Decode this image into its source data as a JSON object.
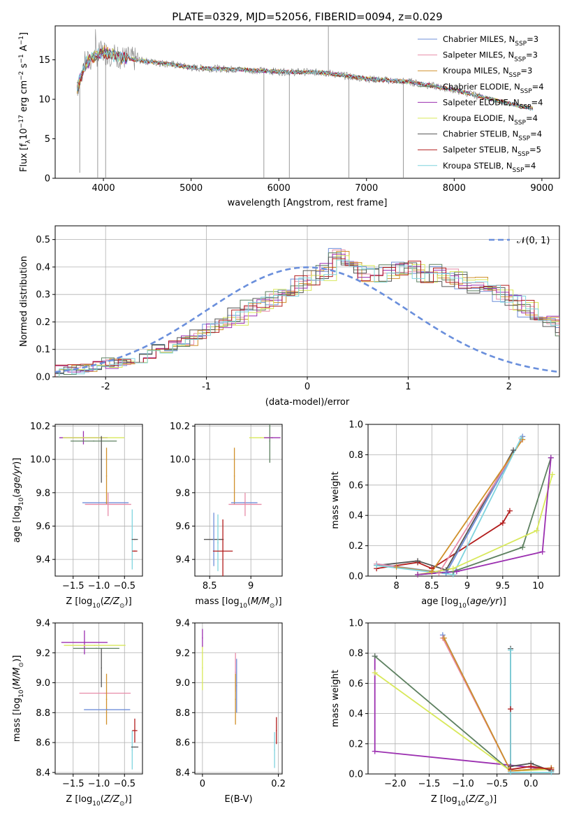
{
  "figure_title": "PLATE=0329, MJD=52056, FIBERID=0094, z=0.029",
  "colors": {
    "chabrier_miles": "#6f8fd9",
    "salpeter_miles": "#e78ca8",
    "kroupa_miles": "#d0902a",
    "chabrier_elodie": "#5d8060",
    "salpeter_elodie": "#9b2fb0",
    "kroupa_elodie": "#d8e85a",
    "chabrier_stelib": "#555555",
    "salpeter_stelib": "#b21c1c",
    "kroupa_stelib": "#7fd3de",
    "spectrum": "#808080",
    "gauss": "#6a8fdc"
  },
  "chart_data": [
    {
      "id": "spectrum",
      "type": "line",
      "xlabel": "wavelength [Angstrom, rest frame]",
      "ylabel": "Flux [f_λ 10^-17 erg cm^-2 s^-1 A^-1]",
      "xlim": [
        3450,
        9200
      ],
      "ylim": [
        0,
        19.3
      ],
      "xticks": [
        4000,
        5000,
        6000,
        7000,
        8000,
        9000
      ],
      "yticks": [
        0,
        5,
        10,
        15
      ],
      "grid": false,
      "legend_position": "top-right",
      "legend": [
        {
          "label": "Chabrier MILES, N_SSP=3",
          "color_key": "chabrier_miles"
        },
        {
          "label": "Salpeter MILES, N_SSP=3",
          "color_key": "salpeter_miles"
        },
        {
          "label": "Kroupa MILES, N_SSP=3",
          "color_key": "kroupa_miles"
        },
        {
          "label": "Chabrier ELODIE, N_SSP=4",
          "color_key": "chabrier_elodie"
        },
        {
          "label": "Salpeter ELODIE, N_SSP=4",
          "color_key": "salpeter_elodie"
        },
        {
          "label": "Kroupa ELODIE, N_SSP=4",
          "color_key": "kroupa_elodie"
        },
        {
          "label": "Chabrier STELIB, N_SSP=4",
          "color_key": "chabrier_stelib"
        },
        {
          "label": "Salpeter STELIB, N_SSP=5",
          "color_key": "salpeter_stelib"
        },
        {
          "label": "Kroupa STELIB, N_SSP=4",
          "color_key": "kroupa_stelib"
        }
      ],
      "continuum": {
        "x": [
          3700,
          3800,
          3900,
          4000,
          4200,
          4500,
          4800,
          5000,
          5500,
          6000,
          6500,
          7000,
          7500,
          8000,
          8500,
          8900
        ],
        "y": [
          11.5,
          14.5,
          15.5,
          16.0,
          15.3,
          14.8,
          14.4,
          14.0,
          13.8,
          13.5,
          13.4,
          12.6,
          12.2,
          11.2,
          9.8,
          8.8
        ]
      },
      "spikes": [
        {
          "x": 3730,
          "y": 0.7
        },
        {
          "x": 4025,
          "y": 0
        },
        {
          "x": 3935,
          "y": 0
        },
        {
          "x": 5830,
          "y": 0
        },
        {
          "x": 6120,
          "y": 0
        },
        {
          "x": 6800,
          "y": 0
        },
        {
          "x": 7420,
          "y": 0
        },
        {
          "x": 6565,
          "y": 19.3
        }
      ]
    },
    {
      "id": "residuals",
      "type": "histogram",
      "xlabel": "(data-model)/error",
      "ylabel": "Normed distribution",
      "xlim": [
        -2.5,
        2.5
      ],
      "ylim": [
        0,
        0.55
      ],
      "xticks": [
        -2,
        -1,
        0,
        1,
        2
      ],
      "yticks": [
        0.0,
        0.1,
        0.2,
        0.3,
        0.4,
        0.5
      ],
      "grid": true,
      "legend": [
        {
          "label": "𝒩(0, 1)",
          "style": "dashed"
        }
      ],
      "bin_width": 0.125,
      "base_values": [
        0.025,
        0.025,
        0.03,
        0.04,
        0.05,
        0.06,
        0.07,
        0.085,
        0.1,
        0.11,
        0.13,
        0.155,
        0.18,
        0.2,
        0.22,
        0.245,
        0.27,
        0.29,
        0.31,
        0.335,
        0.36,
        0.38,
        0.45,
        0.4,
        0.38,
        0.375,
        0.38,
        0.4,
        0.39,
        0.37,
        0.38,
        0.36,
        0.355,
        0.33,
        0.31,
        0.3,
        0.27,
        0.25,
        0.22,
        0.2,
        0.17,
        0.15,
        0.13,
        0.11,
        0.1,
        0.085,
        0.07,
        0.06,
        0.05,
        0.04,
        0.03,
        0.025,
        0.02,
        0.02
      ]
    },
    {
      "id": "age_vs_Z",
      "type": "errorbar",
      "xlabel": "Z [log10(Z/Z⊙)]",
      "ylabel": "age  [log10(age/yr)]",
      "xlim": [
        -1.85,
        -0.15
      ],
      "ylim": [
        9.3,
        10.21
      ],
      "xticks": [
        -1.5,
        -1.0,
        -0.5
      ],
      "xticklabels": [
        "−1.5",
        "−1.0",
        "−0.5"
      ],
      "yticks": [
        9.4,
        9.6,
        9.8,
        10.0,
        10.2
      ],
      "grid": true,
      "points": [
        {
          "c": "salpeter_elodie",
          "x": -1.3,
          "y": 10.13,
          "xerr": 0.47,
          "yerr": 0.04
        },
        {
          "c": "kroupa_elodie",
          "x": -1.1,
          "y": 10.13,
          "xerr": 0.6,
          "yerr": 0.0
        },
        {
          "c": "chabrier_elodie",
          "x": -1.1,
          "y": 10.11,
          "xerr": 0.45,
          "yerr": 0.0
        },
        {
          "c": "chabrier_stelib",
          "x": -0.95,
          "y": 10.0,
          "xerr": 0.0,
          "yerr": 0.14
        },
        {
          "c": "chabrier_miles",
          "x": -0.87,
          "y": 9.74,
          "xerr": 0.45,
          "yerr": 0.0
        },
        {
          "c": "kroupa_miles",
          "x": -0.85,
          "y": 9.9,
          "xerr": 0.0,
          "yerr": 0.17
        },
        {
          "c": "salpeter_miles",
          "x": -0.82,
          "y": 9.73,
          "xerr": 0.45,
          "yerr": 0.07
        },
        {
          "c": "kroupa_stelib",
          "x": -0.35,
          "y": 9.52,
          "xerr": 0.0,
          "yerr": 0.18
        },
        {
          "c": "chabrier_stelib",
          "x": -0.3,
          "y": 9.52,
          "xerr": 0.06,
          "yerr": 0.0
        },
        {
          "c": "salpeter_stelib",
          "x": -0.3,
          "y": 9.45,
          "xerr": 0.05,
          "yerr": 0.0
        }
      ]
    },
    {
      "id": "age_vs_mass",
      "type": "errorbar",
      "xlabel": "mass [log10(M/M⊙)]",
      "ylabel": "",
      "xlim": [
        8.32,
        9.38
      ],
      "ylim": [
        9.3,
        10.21
      ],
      "xticks": [
        8.5,
        9.0
      ],
      "yticks": [
        9.4,
        9.6,
        9.8,
        10.0,
        10.2
      ],
      "grid": true,
      "points": [
        {
          "c": "chabrier_stelib",
          "x": 8.55,
          "y": 9.52,
          "xerr": 0.12,
          "yerr": 0.0
        },
        {
          "c": "chabrier_miles",
          "x": 8.55,
          "y": 9.52,
          "xerr": 0.0,
          "yerr": 0.16
        },
        {
          "c": "kroupa_stelib",
          "x": 8.6,
          "y": 9.5,
          "xerr": 0.0,
          "yerr": 0.17
        },
        {
          "c": "salpeter_stelib",
          "x": 8.66,
          "y": 9.45,
          "xerr": 0.12,
          "yerr": 0.19
        },
        {
          "c": "kroupa_miles",
          "x": 8.8,
          "y": 9.9,
          "xerr": 0.0,
          "yerr": 0.17
        },
        {
          "c": "chabrier_miles",
          "x": 8.92,
          "y": 9.74,
          "xerr": 0.16,
          "yerr": 0.0
        },
        {
          "c": "salpeter_miles",
          "x": 8.93,
          "y": 9.73,
          "xerr": 0.2,
          "yerr": 0.07
        },
        {
          "c": "kroupa_elodie",
          "x": 9.12,
          "y": 10.13,
          "xerr": 0.14,
          "yerr": 0.0
        },
        {
          "c": "chabrier_elodie",
          "x": 9.23,
          "y": 10.11,
          "xerr": 0.0,
          "yerr": 0.13
        },
        {
          "c": "salpeter_elodie",
          "x": 9.26,
          "y": 10.13,
          "xerr": 0.1,
          "yerr": 0.0
        }
      ]
    },
    {
      "id": "weight_vs_age",
      "type": "line",
      "xlabel": "age  [log10(age/yr)]",
      "ylabel": "mass weight",
      "xlim": [
        7.6,
        10.3
      ],
      "ylim": [
        0,
        1.0
      ],
      "xticks": [
        8.0,
        8.5,
        9.0,
        9.5,
        10.0
      ],
      "yticks": [
        0.0,
        0.2,
        0.4,
        0.6,
        0.8,
        1.0
      ],
      "grid": true,
      "series": [
        {
          "c": "salpeter_stelib",
          "x": [
            7.72,
            8.3,
            8.5,
            9.5,
            9.6
          ],
          "y": [
            0.05,
            0.09,
            0.05,
            0.35,
            0.43
          ]
        },
        {
          "c": "chabrier_stelib",
          "x": [
            7.72,
            8.3,
            8.7,
            9.65
          ],
          "y": [
            0.07,
            0.1,
            0.04,
            0.83
          ]
        },
        {
          "c": "chabrier_miles",
          "x": [
            7.72,
            8.7,
            9.78
          ],
          "y": [
            0.08,
            0.02,
            0.92
          ]
        },
        {
          "c": "salpeter_miles",
          "x": [
            7.72,
            8.6,
            9.77
          ],
          "y": [
            0.08,
            0.02,
            0.9
          ]
        },
        {
          "c": "kroupa_miles",
          "x": [
            8.0,
            8.5,
            9.78
          ],
          "y": [
            0.06,
            0.03,
            0.9
          ]
        },
        {
          "c": "kroupa_stelib",
          "x": [
            7.72,
            8.8,
            9.76
          ],
          "y": [
            0.07,
            0.01,
            0.91
          ]
        },
        {
          "c": "chabrier_elodie",
          "x": [
            8.3,
            8.8,
            9.78,
            10.18
          ],
          "y": [
            0.01,
            0.03,
            0.19,
            0.78
          ]
        },
        {
          "c": "kroupa_elodie",
          "x": [
            8.3,
            8.8,
            9.98,
            10.2
          ],
          "y": [
            0.01,
            0.05,
            0.3,
            0.67
          ]
        },
        {
          "c": "salpeter_elodie",
          "x": [
            8.3,
            8.85,
            10.06,
            10.18
          ],
          "y": [
            0.01,
            0.03,
            0.16,
            0.78
          ]
        }
      ]
    },
    {
      "id": "mass_vs_Z",
      "type": "errorbar",
      "xlabel": "Z [log10(Z/Z⊙)]",
      "ylabel": "mass [log10(M/M⊙)]",
      "xlim": [
        -1.85,
        -0.15
      ],
      "ylim": [
        8.39,
        9.4
      ],
      "xticks": [
        -1.5,
        -1.0,
        -0.5
      ],
      "xticklabels": [
        "−1.5",
        "−1.0",
        "−0.5"
      ],
      "yticks": [
        8.4,
        8.6,
        8.8,
        9.0,
        9.2,
        9.4
      ],
      "grid": true,
      "points": [
        {
          "c": "salpeter_elodie",
          "x": -1.28,
          "y": 9.27,
          "xerr": 0.45,
          "yerr": 0.08
        },
        {
          "c": "kroupa_elodie",
          "x": -1.08,
          "y": 9.25,
          "xerr": 0.6,
          "yerr": 0.0
        },
        {
          "c": "chabrier_elodie",
          "x": -1.05,
          "y": 9.23,
          "xerr": 0.45,
          "yerr": 0.0
        },
        {
          "c": "chabrier_stelib",
          "x": -0.95,
          "y": 9.1,
          "xerr": 0.0,
          "yerr": 0.13
        },
        {
          "c": "salpeter_miles",
          "x": -0.88,
          "y": 8.93,
          "xerr": 0.5,
          "yerr": 0.0
        },
        {
          "c": "kroupa_miles",
          "x": -0.85,
          "y": 8.89,
          "xerr": 0.0,
          "yerr": 0.17
        },
        {
          "c": "chabrier_miles",
          "x": -0.84,
          "y": 8.82,
          "xerr": 0.45,
          "yerr": 0.0
        },
        {
          "c": "kroupa_stelib",
          "x": -0.35,
          "y": 8.55,
          "xerr": 0.0,
          "yerr": 0.13
        },
        {
          "c": "salpeter_stelib",
          "x": -0.3,
          "y": 8.68,
          "xerr": 0.05,
          "yerr": 0.08
        },
        {
          "c": "chabrier_stelib",
          "x": -0.3,
          "y": 8.57,
          "xerr": 0.07,
          "yerr": 0.0
        }
      ]
    },
    {
      "id": "mass_vs_ebv",
      "type": "errorbar",
      "xlabel": "E(B-V)",
      "ylabel": "",
      "xlim": [
        -0.02,
        0.21
      ],
      "ylim": [
        8.39,
        9.4
      ],
      "xticks": [
        0.0,
        0.2
      ],
      "yticks": [
        8.4,
        8.6,
        8.8,
        9.0,
        9.2,
        9.4
      ],
      "grid": true,
      "points": [
        {
          "c": "kroupa_elodie",
          "x": 0.0,
          "y": 9.1,
          "xerr": 0.0,
          "yerr": 0.15
        },
        {
          "c": "salpeter_elodie",
          "x": 0.0,
          "y": 9.3,
          "xerr": 0.0,
          "yerr": 0.06
        },
        {
          "c": "salpeter_miles",
          "x": 0.087,
          "y": 9.07,
          "xerr": 0.0,
          "yerr": 0.13
        },
        {
          "c": "kroupa_miles",
          "x": 0.087,
          "y": 8.89,
          "xerr": 0.0,
          "yerr": 0.17
        },
        {
          "c": "chabrier_miles",
          "x": 0.09,
          "y": 8.98,
          "xerr": 0.0,
          "yerr": 0.18
        },
        {
          "c": "salpeter_stelib",
          "x": 0.195,
          "y": 8.68,
          "xerr": 0.0,
          "yerr": 0.09
        },
        {
          "c": "kroupa_stelib",
          "x": 0.19,
          "y": 8.55,
          "xerr": 0.0,
          "yerr": 0.12
        }
      ]
    },
    {
      "id": "weight_vs_Z",
      "type": "line",
      "xlabel": "Z [log10(Z/Z⊙)]",
      "ylabel": "mass weight",
      "xlim": [
        -2.4,
        0.42
      ],
      "ylim": [
        0,
        1.0
      ],
      "xticks": [
        -2.0,
        -1.5,
        -1.0,
        -0.5,
        0.0
      ],
      "xticklabels": [
        "−2.0",
        "−1.5",
        "−1.0",
        "−0.5",
        "0.0"
      ],
      "yticks": [
        0.0,
        0.2,
        0.4,
        0.6,
        0.8,
        1.0
      ],
      "grid": true,
      "series": [
        {
          "c": "salpeter_elodie",
          "x": [
            -2.3,
            -2.3,
            0.3
          ],
          "y": [
            0.78,
            0.15,
            0.03
          ]
        },
        {
          "c": "chabrier_elodie",
          "x": [
            -2.3,
            -0.3,
            0.3
          ],
          "y": [
            0.78,
            0.02,
            0.03
          ]
        },
        {
          "c": "kroupa_elodie",
          "x": [
            -2.3,
            -0.3,
            0.3
          ],
          "y": [
            0.67,
            0.02,
            0.03
          ]
        },
        {
          "c": "chabrier_miles",
          "x": [
            -1.3,
            -0.3,
            0.3
          ],
          "y": [
            0.92,
            0.02,
            0.04
          ]
        },
        {
          "c": "salpeter_miles",
          "x": [
            -1.3,
            -0.3,
            0.3
          ],
          "y": [
            0.9,
            0.02,
            0.04
          ]
        },
        {
          "c": "kroupa_miles",
          "x": [
            -1.28,
            -0.3,
            0.3
          ],
          "y": [
            0.9,
            0.02,
            0.04
          ]
        },
        {
          "c": "chabrier_stelib",
          "x": [
            -0.3,
            -0.3,
            0.0,
            0.3
          ],
          "y": [
            0.83,
            0.05,
            0.07,
            0.02
          ]
        },
        {
          "c": "salpeter_stelib",
          "x": [
            -0.3,
            -0.3,
            0.0,
            0.3
          ],
          "y": [
            0.43,
            0.03,
            0.05,
            0.03
          ]
        },
        {
          "c": "kroupa_stelib",
          "x": [
            -0.3,
            -0.3,
            0.3
          ],
          "y": [
            0.82,
            0.01,
            0.01
          ]
        }
      ]
    }
  ]
}
